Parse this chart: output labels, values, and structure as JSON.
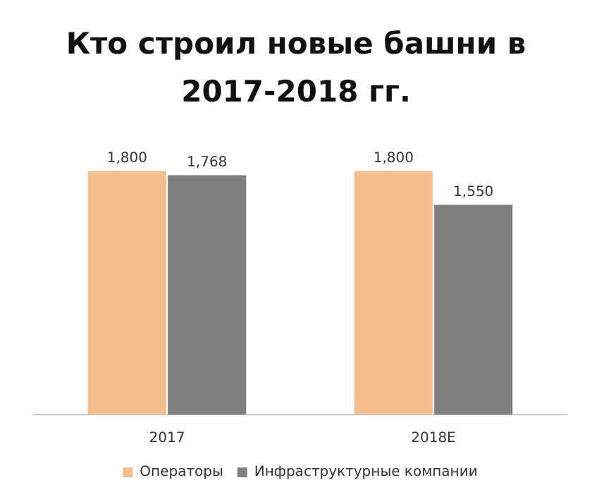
{
  "chart_data": {
    "type": "bar",
    "title": "Кто строил новые башни в 2017-2018 гг.",
    "categories": [
      "2017",
      "2018E"
    ],
    "series": [
      {
        "name": "Операторы",
        "color": "#f4be8e",
        "values": [
          1800,
          1800
        ],
        "value_labels": [
          "1,800",
          "1,800"
        ]
      },
      {
        "name": "Инфраструктурные компании",
        "color": "#7f7f7f",
        "values": [
          1768,
          1550
        ],
        "value_labels": [
          "1,768",
          "1,550"
        ]
      }
    ],
    "legend": "bottom",
    "grid": false
  }
}
